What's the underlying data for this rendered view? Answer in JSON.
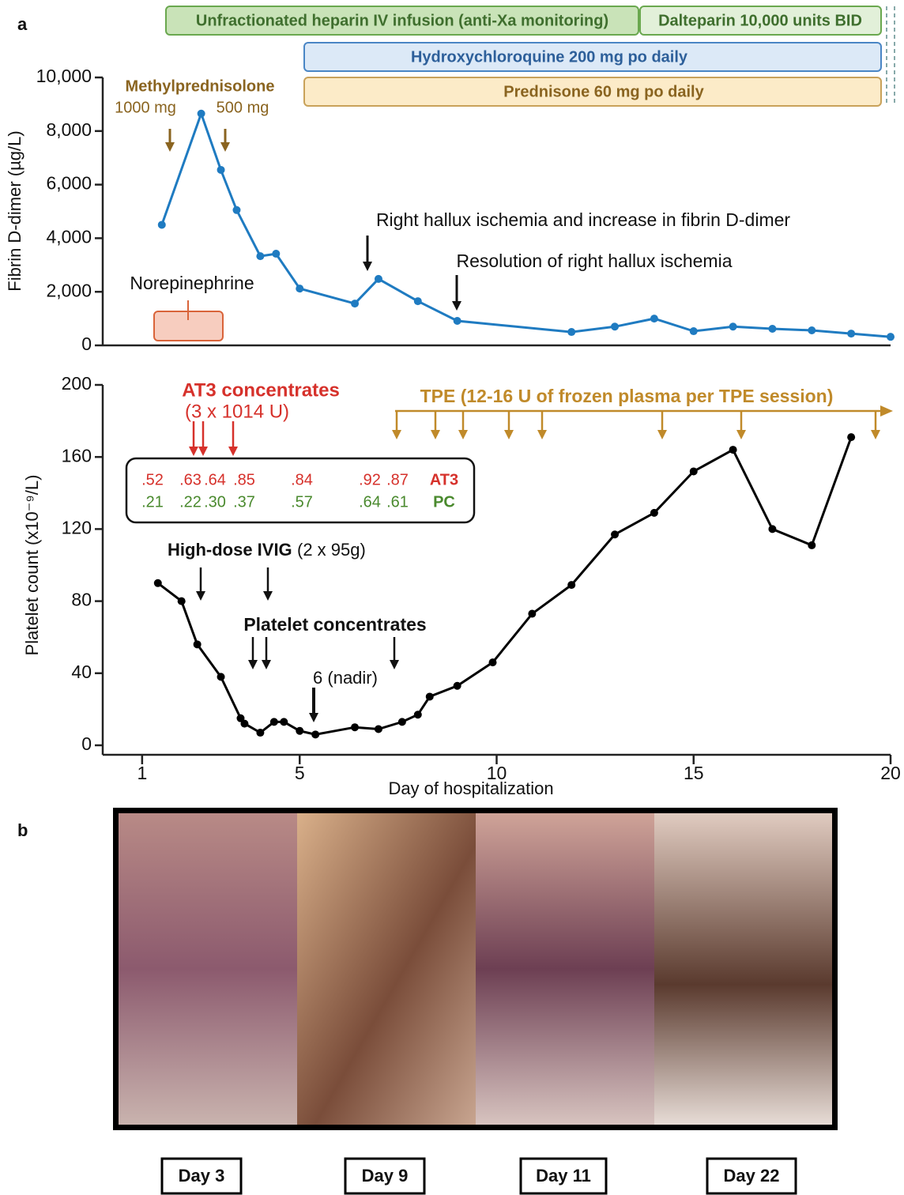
{
  "panel_labels": [
    "a",
    "b"
  ],
  "timeline": [
    "Unfractionated heparin IV infusion (anti-Xa monitoring)",
    "Dalteparin 10,000 units BID",
    "Hydroxychloroquine 200 mg po daily",
    "Prednisone 60 mg po daily"
  ],
  "chart_data": [
    {
      "type": "line",
      "ylabel": "Fibrin D-dimer (µg/L)",
      "color": "#1f7bc1",
      "x": [
        1.5,
        2.5,
        3,
        3.4,
        4,
        4.4,
        5,
        6.4,
        7,
        8,
        9,
        11.9,
        13,
        14,
        15,
        16,
        17,
        18,
        19,
        20
      ],
      "values": [
        4500,
        8650,
        6550,
        5050,
        3330,
        3420,
        2120,
        1560,
        2480,
        1650,
        915,
        500,
        700,
        1000,
        530,
        700,
        620,
        560,
        440,
        320
      ],
      "xlim": [
        0,
        20
      ],
      "ylim": [
        0,
        10000
      ],
      "yticks": [
        0,
        {
          "value": 2000,
          "label": "2,000"
        },
        {
          "value": 4000,
          "label": "4,000"
        },
        {
          "value": 6000,
          "label": "6,000"
        },
        {
          "value": 8000,
          "label": "8,000"
        },
        {
          "value": 10000,
          "label": "10,000"
        }
      ],
      "annotations": [
        "Methylprednisolone",
        "1000 mg",
        "500 mg",
        "Right hallux ischemia and increase in fibrin D-dimer",
        "Resolution of right hallux ischemia",
        "Norepinephrine"
      ]
    },
    {
      "type": "line",
      "ylabel": "Platelet count (x10⁻⁹/L)",
      "xlabel": "Day of hospitalization",
      "color": "#000000",
      "x": [
        1.4,
        2,
        2.4,
        3,
        3.5,
        3.6,
        4,
        4.35,
        4.6,
        5,
        5.4,
        6.4,
        7,
        7.6,
        8,
        8.3,
        9,
        9.9,
        10.9,
        11.9,
        13,
        14,
        15,
        16,
        17,
        18,
        19
      ],
      "values": [
        90,
        80,
        56,
        38,
        15,
        12,
        7,
        13,
        13,
        8,
        6,
        10,
        9,
        13,
        17,
        27,
        33,
        46,
        73,
        89,
        117,
        129,
        152,
        164,
        120,
        111,
        171
      ],
      "xlim": [
        0,
        20
      ],
      "ylim": [
        0,
        200
      ],
      "xticks": [
        1,
        5,
        10,
        15,
        20
      ],
      "yticks": [
        0,
        40,
        80,
        120,
        160,
        200
      ],
      "annotations": [
        "AT3 concentrates",
        "(3 x 1014 U)",
        "TPE (12-16 U of frozen plasma per TPE session)",
        "High-dose IVIG",
        "(2 x 95g)",
        "Platelet concentrates",
        "6 (nadir)"
      ],
      "lab_table": [
        {
          "name": "AT3",
          "values": [
            ".52",
            ".63",
            ".64",
            ".85",
            ".84",
            ".92",
            ".87"
          ]
        },
        {
          "name": "PC",
          "values": [
            ".21",
            ".22",
            ".30",
            ".37",
            ".57",
            ".64",
            ".61"
          ]
        }
      ]
    }
  ],
  "photos": {
    "captions": [
      "Day 3",
      "Day 9",
      "Day 11",
      "Day 22"
    ]
  }
}
